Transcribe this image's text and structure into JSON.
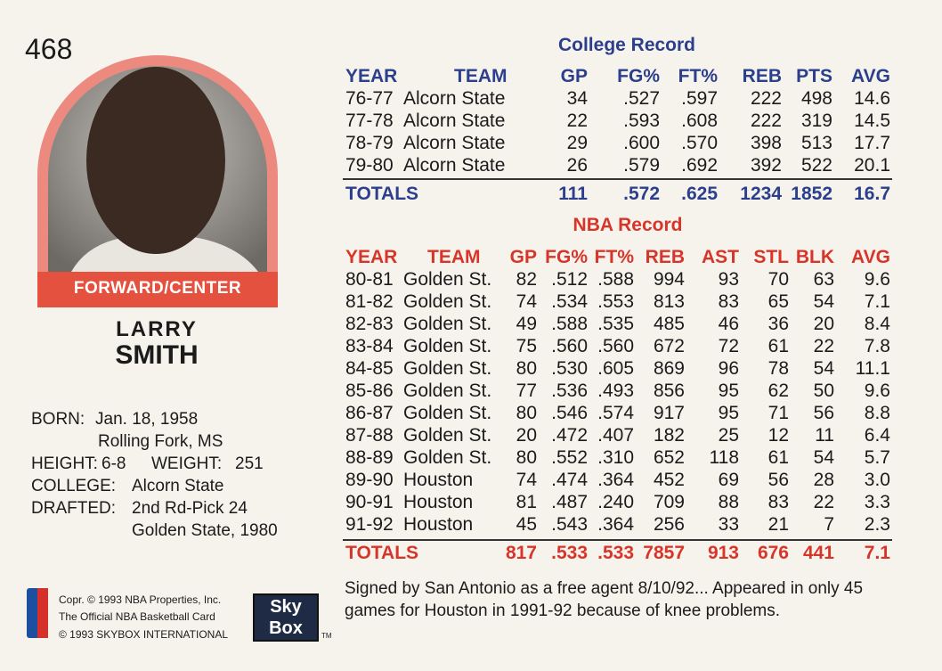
{
  "card_number": "468",
  "position": "FORWARD/CENTER",
  "name": {
    "first": "LARRY",
    "last": "SMITH"
  },
  "bio": {
    "born_label": "BORN:",
    "born": "Jan. 18, 1958",
    "birthplace": "Rolling Fork, MS",
    "height_label": "HEIGHT:",
    "height": "6-8",
    "weight_label": "WEIGHT:",
    "weight": "251",
    "college_label": "COLLEGE:",
    "college": "Alcorn State",
    "drafted_label": "DRAFTED:",
    "drafted": "2nd Rd-Pick 24",
    "drafted_team": "Golden State, 1980"
  },
  "college": {
    "title": "College Record",
    "headers": [
      "YEAR",
      "TEAM",
      "GP",
      "FG%",
      "FT%",
      "REB",
      "PTS",
      "AVG"
    ],
    "rows": [
      [
        "76-77",
        "Alcorn State",
        "34",
        ".527",
        ".597",
        "222",
        "498",
        "14.6"
      ],
      [
        "77-78",
        "Alcorn State",
        "22",
        ".593",
        ".608",
        "222",
        "319",
        "14.5"
      ],
      [
        "78-79",
        "Alcorn State",
        "29",
        ".600",
        ".570",
        "398",
        "513",
        "17.7"
      ],
      [
        "79-80",
        "Alcorn State",
        "26",
        ".579",
        ".692",
        "392",
        "522",
        "20.1"
      ]
    ],
    "totals": [
      "TOTALS",
      "111",
      ".572",
      ".625",
      "1234",
      "1852",
      "16.7"
    ]
  },
  "nba": {
    "title": "NBA Record",
    "headers": [
      "YEAR",
      "TEAM",
      "GP",
      "FG%",
      "FT%",
      "REB",
      "AST",
      "STL",
      "BLK",
      "AVG"
    ],
    "rows": [
      [
        "80-81",
        "Golden St.",
        "82",
        ".512",
        ".588",
        "994",
        "93",
        "70",
        "63",
        "9.6"
      ],
      [
        "81-82",
        "Golden St.",
        "74",
        ".534",
        ".553",
        "813",
        "83",
        "65",
        "54",
        "7.1"
      ],
      [
        "82-83",
        "Golden St.",
        "49",
        ".588",
        ".535",
        "485",
        "46",
        "36",
        "20",
        "8.4"
      ],
      [
        "83-84",
        "Golden St.",
        "75",
        ".560",
        ".560",
        "672",
        "72",
        "61",
        "22",
        "7.8"
      ],
      [
        "84-85",
        "Golden St.",
        "80",
        ".530",
        ".605",
        "869",
        "96",
        "78",
        "54",
        "11.1"
      ],
      [
        "85-86",
        "Golden St.",
        "77",
        ".536",
        ".493",
        "856",
        "95",
        "62",
        "50",
        "9.6"
      ],
      [
        "86-87",
        "Golden St.",
        "80",
        ".546",
        ".574",
        "917",
        "95",
        "71",
        "56",
        "8.8"
      ],
      [
        "87-88",
        "Golden St.",
        "20",
        ".472",
        ".407",
        "182",
        "25",
        "12",
        "11",
        "6.4"
      ],
      [
        "88-89",
        "Golden St.",
        "80",
        ".552",
        ".310",
        "652",
        "118",
        "61",
        "54",
        "5.7"
      ],
      [
        "89-90",
        "Houston",
        "74",
        ".474",
        ".364",
        "452",
        "69",
        "56",
        "28",
        "3.0"
      ],
      [
        "90-91",
        "Houston",
        "81",
        ".487",
        ".240",
        "709",
        "88",
        "83",
        "22",
        "3.3"
      ],
      [
        "91-92",
        "Houston",
        "45",
        ".543",
        ".364",
        "256",
        "33",
        "21",
        "7",
        "2.3"
      ]
    ],
    "totals": [
      "TOTALS",
      "817",
      ".533",
      ".533",
      "7857",
      "913",
      "676",
      "441",
      "7.1"
    ]
  },
  "blurb": "Signed by San Antonio as a free agent 8/10/92... Appeared in only 45 games for Houston in 1991-92 because of knee problems.",
  "copyright": [
    "Copr. © 1993 NBA Properties, Inc.",
    "The Official NBA Basketball Card",
    "© 1993 SKYBOX INTERNATIONAL"
  ],
  "logo": {
    "top": "Sky",
    "bottom": "Box",
    "tm": "TM"
  }
}
